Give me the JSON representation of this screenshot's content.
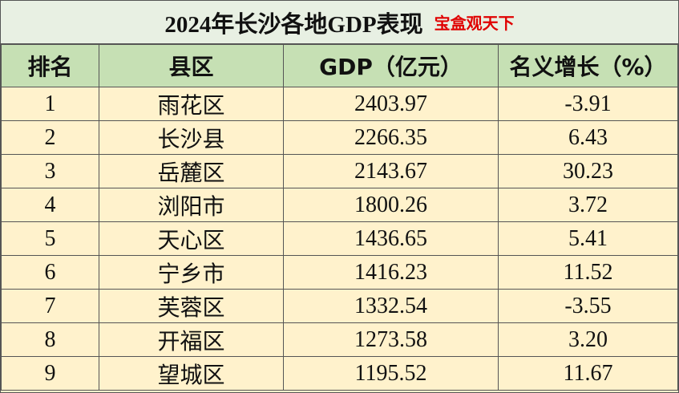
{
  "header": {
    "title": "2024年长沙各地GDP表现",
    "watermark": "宝盒观天下"
  },
  "table": {
    "headers": [
      "排名",
      "县区",
      "GDP（亿元）",
      "名义增长（%）"
    ],
    "rows": [
      [
        "1",
        "雨花区",
        "2403.97",
        "-3.91"
      ],
      [
        "2",
        "长沙县",
        "2266.35",
        "6.43"
      ],
      [
        "3",
        "岳麓区",
        "2143.67",
        "30.23"
      ],
      [
        "4",
        "浏阳市",
        "1800.26",
        "3.72"
      ],
      [
        "5",
        "天心区",
        "1436.65",
        "5.41"
      ],
      [
        "6",
        "宁乡市",
        "1416.23",
        "11.52"
      ],
      [
        "7",
        "芙蓉区",
        "1332.54",
        "-3.55"
      ],
      [
        "8",
        "开福区",
        "1273.58",
        "3.20"
      ],
      [
        "9",
        "望城区",
        "1195.52",
        "11.67"
      ]
    ]
  }
}
